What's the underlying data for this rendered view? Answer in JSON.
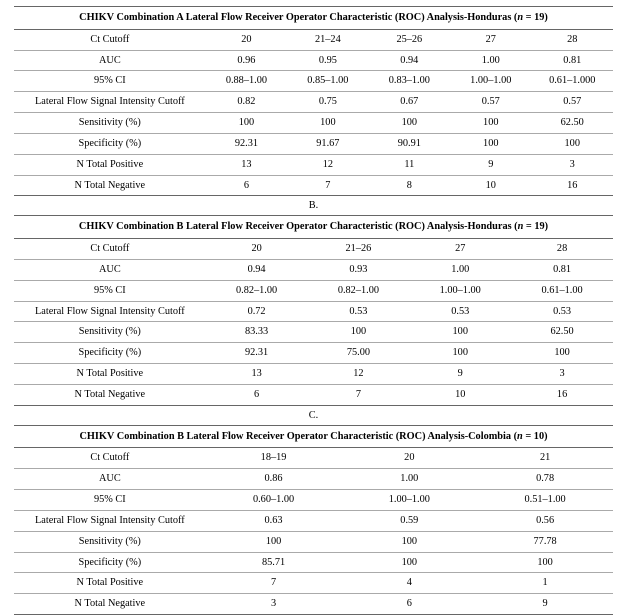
{
  "sections": [
    {
      "title_parts": [
        "CHIKV Combination A Lateral Flow Receiver Operator Characteristic (ROC) Analysis-Honduras (",
        "n",
        " = 19)"
      ],
      "columns": [
        "Ct Cutoff",
        "20",
        "21–24",
        "25–26",
        "27",
        "28"
      ],
      "rows": [
        [
          "AUC",
          "0.96",
          "0.95",
          "0.94",
          "1.00",
          "0.81"
        ],
        [
          "95% CI",
          "0.88–1.00",
          "0.85–1.00",
          "0.83–1.00",
          "1.00–1.00",
          "0.61–1.000"
        ],
        [
          "Lateral Flow Signal Intensity Cutoff",
          "0.82",
          "0.75",
          "0.67",
          "0.57",
          "0.57"
        ],
        [
          "Sensitivity (%)",
          "100",
          "100",
          "100",
          "100",
          "62.50"
        ],
        [
          "Specificity (%)",
          "92.31",
          "91.67",
          "90.91",
          "100",
          "100"
        ],
        [
          "N Total Positive",
          "13",
          "12",
          "11",
          "9",
          "3"
        ],
        [
          "N Total Negative",
          "6",
          "7",
          "8",
          "10",
          "16"
        ]
      ],
      "panel_letter_after": "B."
    },
    {
      "title_parts": [
        "CHIKV Combination B Lateral Flow Receiver Operator Characteristic (ROC) Analysis-Honduras (",
        "n",
        " = 19)"
      ],
      "columns": [
        "Ct Cutoff",
        "20",
        "21–26",
        "27",
        "28"
      ],
      "rows": [
        [
          "AUC",
          "0.94",
          "0.93",
          "1.00",
          "0.81"
        ],
        [
          "95% CI",
          "0.82–1.00",
          "0.82–1.00",
          "1.00–1.00",
          "0.61–1.00"
        ],
        [
          "Lateral Flow Signal Intensity Cutoff",
          "0.72",
          "0.53",
          "0.53",
          "0.53"
        ],
        [
          "Sensitivity (%)",
          "83.33",
          "100",
          "100",
          "62.50"
        ],
        [
          "Specificity (%)",
          "92.31",
          "75.00",
          "100",
          "100"
        ],
        [
          "N Total Positive",
          "13",
          "12",
          "9",
          "3"
        ],
        [
          "N Total Negative",
          "6",
          "7",
          "10",
          "16"
        ]
      ],
      "panel_letter_after": "C."
    },
    {
      "title_parts": [
        "CHIKV Combination B Lateral Flow Receiver Operator Characteristic (ROC) Analysis-Colombia (",
        "n",
        " = 10)"
      ],
      "columns": [
        "Ct Cutoff",
        "18–19",
        "20",
        "21"
      ],
      "rows": [
        [
          "AUC",
          "0.86",
          "1.00",
          "0.78"
        ],
        [
          "95% CI",
          "0.60–1.00",
          "1.00–1.00",
          "0.51–1.00"
        ],
        [
          "Lateral Flow Signal Intensity Cutoff",
          "0.63",
          "0.59",
          "0.56"
        ],
        [
          "Sensitivity (%)",
          "100",
          "100",
          "77.78"
        ],
        [
          "Specificity (%)",
          "85.71",
          "100",
          "100"
        ],
        [
          "N Total Positive",
          "7",
          "4",
          "1"
        ],
        [
          "N Total Negative",
          "3",
          "6",
          "9"
        ]
      ],
      "panel_letter_after": null
    }
  ],
  "layout": {
    "label_col_width_pct": 32
  }
}
